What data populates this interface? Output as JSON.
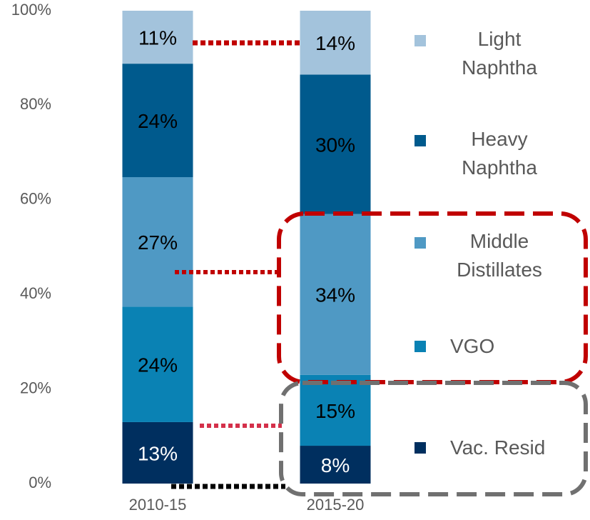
{
  "chart_data": {
    "type": "stacked_bar",
    "categories": [
      "2010-15",
      "2015-20"
    ],
    "ylim": [
      0,
      100
    ],
    "yticks": [
      {
        "value": 0,
        "label": "0%"
      },
      {
        "value": 20,
        "label": "20%"
      },
      {
        "value": 40,
        "label": "40%"
      },
      {
        "value": 60,
        "label": "60%"
      },
      {
        "value": 80,
        "label": "80%"
      },
      {
        "value": 100,
        "label": "100%"
      }
    ],
    "series": [
      {
        "name": "Vac. Resid",
        "color": "#002f5f",
        "label_color": "#ffffff",
        "values": [
          13,
          8
        ],
        "value_labels": [
          "13%",
          "8%"
        ]
      },
      {
        "name": "VGO",
        "color": "#0a82b4",
        "label_color": "#000000",
        "values": [
          24.4,
          15
        ],
        "value_labels": [
          "24%",
          "15%"
        ]
      },
      {
        "name": "Middle Distillates",
        "color": "#4f99c4",
        "label_color": "#000000",
        "values": [
          27.4,
          34
        ],
        "value_labels": [
          "27%",
          "34%"
        ]
      },
      {
        "name": "Heavy Naphtha",
        "color": "#005a8d",
        "label_color": "#000000",
        "values": [
          24,
          29.5
        ],
        "value_labels": [
          "24%",
          "30%"
        ]
      },
      {
        "name": "Light Naphtha",
        "color": "#a3c3dc",
        "label_color": "#000000",
        "values": [
          11.2,
          13.5
        ],
        "value_labels": [
          "11%",
          "14%"
        ]
      }
    ]
  }
}
